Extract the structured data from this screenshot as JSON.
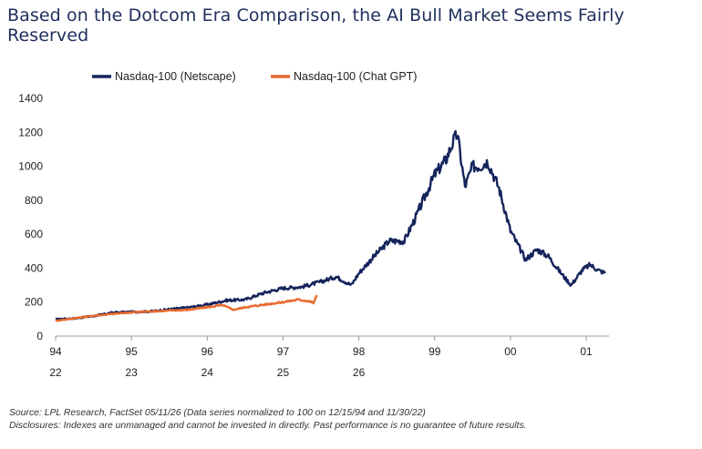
{
  "title": "Based on the Dotcom Era Comparison, the AI Bull Market Seems Fairly Reserved",
  "footer": {
    "source": "Source: LPL Research, FactSet 05/11/26 (Data series normalized to 100 on 12/15/94 and 11/30/22)",
    "disclosure": "Disclosures: Indexes are unmanaged and cannot be invested in directly. Past performance is no guarantee of future results."
  },
  "colors": {
    "navy": "#15245c",
    "orange": "#ea6a2e",
    "axis": "#999999",
    "text": "#222222"
  },
  "chart_data": {
    "type": "line",
    "title": "Based on the Dotcom Era Comparison, the AI Bull Market Seems Fairly Reserved",
    "ylim": [
      0,
      1400
    ],
    "yticks": [
      0,
      200,
      400,
      600,
      800,
      1000,
      1200,
      1400
    ],
    "xlim": [
      94.0,
      101.3
    ],
    "xticks": [
      94,
      95,
      96,
      97,
      98,
      99,
      100,
      101
    ],
    "xtick_labels_top": [
      "94",
      "95",
      "96",
      "97",
      "98",
      "99",
      "00",
      "01"
    ],
    "xtick_labels_bottom": [
      "22",
      "23",
      "24",
      "25",
      "26",
      "",
      "",
      ""
    ],
    "grid": false,
    "legend_position": "top-left",
    "series": [
      {
        "name": "Nasdaq-100 (Netscape)",
        "color": "#15245c",
        "points": [
          [
            94.0,
            100
          ],
          [
            94.25,
            104
          ],
          [
            94.5,
            118
          ],
          [
            94.75,
            138
          ],
          [
            95.0,
            142
          ],
          [
            95.25,
            145
          ],
          [
            95.5,
            158
          ],
          [
            95.75,
            168
          ],
          [
            96.0,
            185
          ],
          [
            96.25,
            210
          ],
          [
            96.5,
            215
          ],
          [
            96.75,
            255
          ],
          [
            97.0,
            282
          ],
          [
            97.25,
            290
          ],
          [
            97.5,
            320
          ],
          [
            97.7,
            350
          ],
          [
            97.9,
            300
          ],
          [
            98.0,
            370
          ],
          [
            98.2,
            470
          ],
          [
            98.4,
            560
          ],
          [
            98.6,
            560
          ],
          [
            98.75,
            700
          ],
          [
            99.0,
            950
          ],
          [
            99.15,
            1040
          ],
          [
            99.25,
            1150
          ],
          [
            99.3,
            1190
          ],
          [
            99.4,
            880
          ],
          [
            99.5,
            1000
          ],
          [
            99.6,
            1000
          ],
          [
            99.7,
            1030
          ],
          [
            99.85,
            870
          ],
          [
            100.0,
            620
          ],
          [
            100.2,
            450
          ],
          [
            100.35,
            510
          ],
          [
            100.5,
            470
          ],
          [
            100.65,
            380
          ],
          [
            100.8,
            300
          ],
          [
            100.95,
            390
          ],
          [
            101.05,
            420
          ],
          [
            101.15,
            390
          ],
          [
            101.25,
            370
          ]
        ]
      },
      {
        "name": "Nasdaq-100 (Chat GPT)",
        "color": "#ea6a2e",
        "points": [
          [
            94.0,
            90
          ],
          [
            94.25,
            105
          ],
          [
            94.5,
            120
          ],
          [
            94.75,
            130
          ],
          [
            95.0,
            140
          ],
          [
            95.25,
            145
          ],
          [
            95.5,
            150
          ],
          [
            95.75,
            155
          ],
          [
            96.0,
            170
          ],
          [
            96.2,
            182
          ],
          [
            96.35,
            155
          ],
          [
            96.5,
            170
          ],
          [
            96.75,
            185
          ],
          [
            97.0,
            200
          ],
          [
            97.2,
            215
          ],
          [
            97.35,
            205
          ],
          [
            97.4,
            195
          ],
          [
            97.45,
            240
          ]
        ]
      }
    ]
  }
}
